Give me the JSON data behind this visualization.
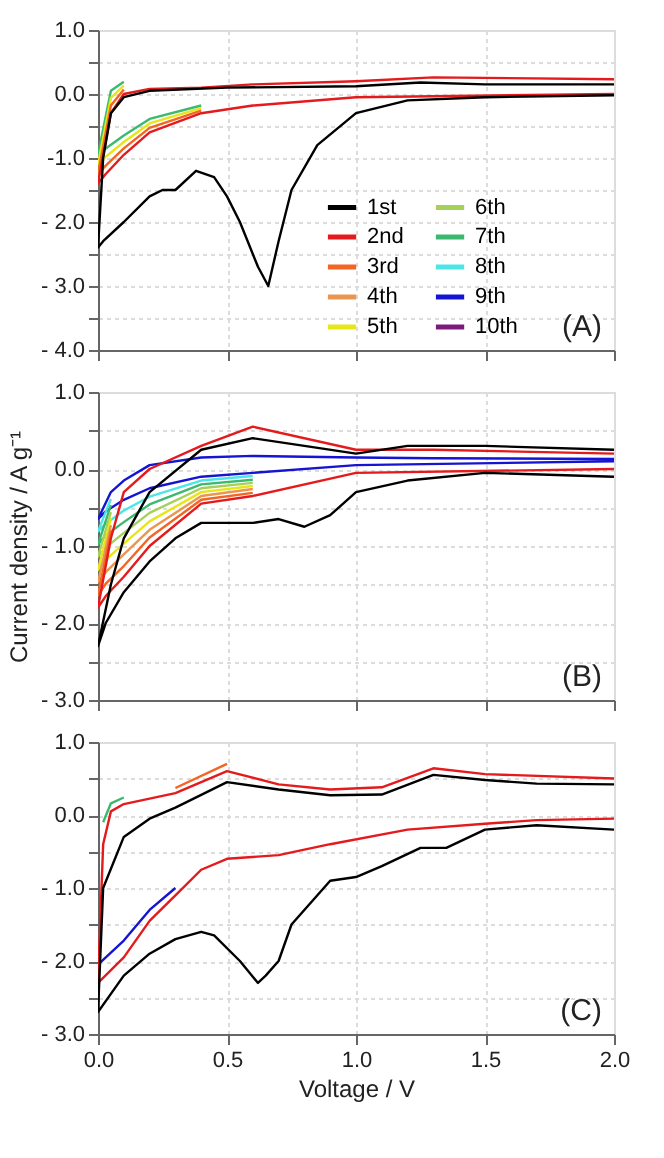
{
  "chart_data": [
    {
      "type": "line",
      "legend": "bottom right",
      "grid": true,
      "tick_labels": "y",
      "annotations": [
        "(A)"
      ],
      "xlim": [
        0,
        2
      ],
      "xticks": [
        {
          "value": 0,
          "label": null
        },
        {
          "value": 0.5,
          "label": null
        },
        {
          "value": 1,
          "label": null
        },
        {
          "value": 1.5,
          "label": null
        },
        {
          "value": 2,
          "label": null
        }
      ],
      "ylim": [
        -4,
        1
      ],
      "yticks": [
        {
          "value": 1,
          "label": "1.0"
        },
        {
          "value": 0.5,
          "label": null
        },
        {
          "value": 0,
          "label": "0.0"
        },
        {
          "value": -0.5,
          "label": null
        },
        {
          "value": -1,
          "label": "-1.0"
        },
        {
          "value": -1.5,
          "label": null
        },
        {
          "value": -2,
          "label": "- 2.0"
        },
        {
          "value": -2.5,
          "label": null
        },
        {
          "value": -3,
          "label": "- 3.0"
        },
        {
          "value": -3.5,
          "label": null
        },
        {
          "value": -4,
          "label": "- 4.0"
        }
      ],
      "x": [
        2.0,
        1.0,
        0.6,
        0.4,
        0.2,
        0.1,
        0.03,
        0.0,
        0.05,
        0.1,
        0.2,
        0.4,
        0.6,
        1.0,
        1.3,
        2.0
      ],
      "series": [
        {
          "name": "1st",
          "color": "#000000",
          "x": [
            2.0,
            1.5,
            1.2,
            1.0,
            0.85,
            0.75,
            0.7,
            0.66,
            0.62,
            0.55,
            0.5,
            0.45,
            0.38,
            0.3,
            0.25,
            0.2,
            0.1,
            0.02,
            0.0,
            0.02,
            0.05,
            0.1,
            0.2,
            0.5,
            1.0,
            1.25,
            1.5,
            2.0
          ],
          "values": [
            -0.02,
            -0.05,
            -0.1,
            -0.3,
            -0.8,
            -1.5,
            -2.3,
            -3.0,
            -2.7,
            -2.0,
            -1.6,
            -1.3,
            -1.2,
            -1.5,
            -1.5,
            -1.6,
            -2.0,
            -2.3,
            -2.4,
            -1.0,
            -0.3,
            -0.05,
            0.05,
            0.1,
            0.12,
            0.18,
            0.15,
            0.15
          ]
        },
        {
          "name": "2nd",
          "color": "#e41a1c",
          "values": [
            0.0,
            -0.05,
            -0.18,
            -0.3,
            -0.6,
            -0.95,
            -1.25,
            -1.4,
            -0.3,
            0.0,
            0.08,
            0.1,
            0.15,
            0.2,
            0.26,
            0.23
          ]
        },
        {
          "name": "3rd",
          "color": "#f26522",
          "values": [
            null,
            null,
            null,
            -0.26,
            -0.53,
            -0.85,
            -1.12,
            -1.25,
            -0.18,
            0.07,
            null,
            null,
            null,
            null,
            null,
            null
          ]
        },
        {
          "name": "4th",
          "color": "#eb9650",
          "values": [
            null,
            null,
            null,
            null,
            null,
            null,
            null,
            null,
            null,
            null,
            null,
            null,
            null,
            null,
            null,
            null
          ]
        },
        {
          "name": "5th",
          "color": "#e6e619",
          "values": [
            null,
            null,
            null,
            -0.22,
            -0.46,
            -0.75,
            -0.98,
            -1.1,
            -0.06,
            0.13,
            null,
            null,
            null,
            null,
            null,
            null
          ]
        },
        {
          "name": "6th",
          "color": "#a6d05a",
          "values": [
            null,
            null,
            null,
            null,
            null,
            null,
            null,
            null,
            null,
            null,
            null,
            null,
            null,
            null,
            null,
            null
          ]
        },
        {
          "name": "7th",
          "color": "#3cb96e",
          "values": [
            null,
            null,
            null,
            -0.18,
            -0.39,
            -0.65,
            -0.85,
            -0.95,
            0.05,
            0.19,
            null,
            null,
            null,
            null,
            null,
            null
          ]
        },
        {
          "name": "8th",
          "color": "#4de6e6",
          "values": [
            null,
            null,
            null,
            null,
            null,
            null,
            null,
            null,
            null,
            null,
            null,
            null,
            null,
            null,
            null,
            null
          ]
        },
        {
          "name": "9th",
          "color": "#1414d2",
          "values": [
            null,
            null,
            null,
            null,
            null,
            null,
            null,
            null,
            null,
            null,
            null,
            null,
            null,
            null,
            null,
            null
          ]
        },
        {
          "name": "10th",
          "color": "#7d1a7d",
          "values": [
            null,
            null,
            null,
            null,
            null,
            null,
            null,
            null,
            null,
            null,
            null,
            null,
            null,
            null,
            null,
            null
          ]
        }
      ]
    },
    {
      "type": "line",
      "grid": true,
      "tick_labels": "y",
      "ylabel": "Current density / A g⁻¹",
      "annotations": [
        "(B)"
      ],
      "xlim": [
        0,
        2
      ],
      "xticks": [
        {
          "value": 0,
          "label": null
        },
        {
          "value": 0.5,
          "label": null
        },
        {
          "value": 1,
          "label": null
        },
        {
          "value": 1.5,
          "label": null
        },
        {
          "value": 2,
          "label": null
        }
      ],
      "ylim": [
        -3,
        1
      ],
      "yticks": [
        {
          "value": 1,
          "label": "1.0"
        },
        {
          "value": 0.5,
          "label": null
        },
        {
          "value": 0,
          "label": "0.0"
        },
        {
          "value": -0.5,
          "label": null
        },
        {
          "value": -1,
          "label": "- 1.0"
        },
        {
          "value": -1.5,
          "label": null
        },
        {
          "value": -2,
          "label": "- 2.0"
        },
        {
          "value": -2.5,
          "label": null
        },
        {
          "value": -3,
          "label": "- 3.0"
        }
      ],
      "x": [
        2.0,
        1.0,
        0.6,
        0.4,
        0.2,
        0.1,
        0.03,
        0.0,
        0.05,
        0.1,
        0.2,
        0.4,
        0.6,
        1.0,
        1.3,
        2.0
      ],
      "series": [
        {
          "color": "#000000",
          "x": [
            2.0,
            1.5,
            1.2,
            1.0,
            0.9,
            0.8,
            0.7,
            0.6,
            0.4,
            0.3,
            0.2,
            0.1,
            0.03,
            0.0,
            0.05,
            0.1,
            0.2,
            0.4,
            0.6,
            0.8,
            1.0,
            1.2,
            1.5,
            2.0
          ],
          "values": [
            -0.1,
            -0.05,
            -0.15,
            -0.3,
            -0.6,
            -0.75,
            -0.65,
            -0.7,
            -0.7,
            -0.9,
            -1.2,
            -1.6,
            -2.0,
            -2.3,
            -1.5,
            -0.9,
            -0.3,
            0.25,
            0.4,
            0.3,
            0.2,
            0.3,
            0.3,
            0.25
          ]
        },
        {
          "color": "#e41a1c",
          "values": [
            0.0,
            -0.05,
            -0.35,
            -0.45,
            -1.0,
            -1.4,
            -1.65,
            -1.8,
            -0.9,
            -0.3,
            0.0,
            0.3,
            0.55,
            0.25,
            0.25,
            0.2
          ]
        },
        {
          "color": "#f26522",
          "values": [
            null,
            null,
            -0.31,
            -0.4,
            -0.89,
            -1.26,
            -1.49,
            -1.64,
            -0.81,
            null,
            null,
            null,
            null,
            null,
            null,
            null
          ]
        },
        {
          "color": "#eb9650",
          "values": [
            null,
            null,
            -0.26,
            -0.35,
            -0.79,
            -1.11,
            -1.34,
            -1.47,
            -0.73,
            null,
            null,
            null,
            null,
            null,
            null,
            null
          ]
        },
        {
          "color": "#e6e619",
          "values": [
            null,
            null,
            -0.22,
            -0.3,
            -0.68,
            -0.97,
            -1.18,
            -1.31,
            -0.64,
            null,
            null,
            null,
            null,
            null,
            null,
            null
          ]
        },
        {
          "color": "#a6d05a",
          "values": [
            null,
            null,
            -0.18,
            -0.25,
            -0.57,
            -0.83,
            -1.02,
            -1.14,
            -0.56,
            null,
            null,
            null,
            null,
            null,
            null,
            null
          ]
        },
        {
          "color": "#3cb96e",
          "values": [
            null,
            null,
            -0.14,
            -0.2,
            -0.46,
            -0.69,
            -0.86,
            -0.98,
            -0.47,
            null,
            null,
            null,
            null,
            null,
            null,
            null
          ]
        },
        {
          "color": "#4de6e6",
          "values": [
            null,
            null,
            -0.09,
            -0.15,
            -0.36,
            -0.54,
            -0.71,
            -0.81,
            -0.39,
            null,
            null,
            null,
            null,
            null,
            null,
            null
          ]
        },
        {
          "color": "#1414d2",
          "values": [
            0.1,
            0.05,
            -0.05,
            -0.1,
            -0.25,
            -0.4,
            -0.55,
            -0.65,
            -0.3,
            -0.15,
            0.05,
            0.15,
            0.17,
            0.15,
            0.14,
            0.13
          ]
        },
        {
          "color": "#7d1a7d",
          "values": [
            null,
            null,
            null,
            null,
            null,
            null,
            null,
            null,
            null,
            null,
            null,
            null,
            null,
            null,
            null,
            null
          ]
        }
      ]
    },
    {
      "type": "line",
      "grid": true,
      "xlabel": "Voltage / V",
      "annotations": [
        "(C)"
      ],
      "xlim": [
        0,
        2
      ],
      "xticks": [
        {
          "value": 0,
          "label": "0.0"
        },
        {
          "value": 0.5,
          "label": "0.5"
        },
        {
          "value": 1,
          "label": "1.0"
        },
        {
          "value": 1.5,
          "label": "1.5"
        },
        {
          "value": 2,
          "label": "2.0"
        }
      ],
      "ylim": [
        -3,
        1
      ],
      "yticks": [
        {
          "value": 1,
          "label": "1.0"
        },
        {
          "value": 0.5,
          "label": null
        },
        {
          "value": 0,
          "label": "0.0"
        },
        {
          "value": -0.5,
          "label": null
        },
        {
          "value": -1,
          "label": "- 1.0"
        },
        {
          "value": -1.5,
          "label": null
        },
        {
          "value": -2,
          "label": "- 2.0"
        },
        {
          "value": -2.5,
          "label": null
        },
        {
          "value": -3,
          "label": "- 3.0"
        }
      ],
      "x": [
        2.0,
        1.7,
        1.5,
        1.2,
        0.9,
        0.7,
        0.5,
        0.4,
        0.3,
        0.2,
        0.1,
        0.0,
        0.02,
        0.05,
        0.1,
        0.3,
        0.5,
        0.7,
        0.9,
        1.1,
        1.3,
        1.5,
        2.0
      ],
      "series": [
        {
          "color": "#000000",
          "x": [
            2.0,
            1.7,
            1.5,
            1.35,
            1.25,
            1.1,
            1.0,
            0.9,
            0.75,
            0.7,
            0.65,
            0.62,
            0.55,
            0.45,
            0.4,
            0.3,
            0.2,
            0.1,
            0.0,
            0.02,
            0.1,
            0.2,
            0.3,
            0.5,
            0.7,
            0.9,
            1.1,
            1.3,
            1.5,
            1.7,
            2.0
          ],
          "values": [
            -0.2,
            -0.14,
            -0.2,
            -0.45,
            -0.45,
            -0.7,
            -0.85,
            -0.9,
            -1.5,
            -2.0,
            -2.2,
            -2.3,
            -2.0,
            -1.65,
            -1.6,
            -1.7,
            -1.9,
            -2.2,
            -2.7,
            -1.0,
            -0.3,
            -0.05,
            0.1,
            0.45,
            0.35,
            0.27,
            0.28,
            0.55,
            0.48,
            0.43,
            0.42
          ]
        },
        {
          "color": "#e41a1c",
          "values": [
            -0.05,
            -0.07,
            -0.12,
            -0.2,
            -0.4,
            -0.55,
            -0.6,
            -0.75,
            -1.1,
            -1.45,
            -1.95,
            -2.3,
            -0.4,
            0.05,
            0.15,
            0.3,
            0.6,
            0.42,
            0.35,
            0.38,
            0.64,
            0.56,
            0.5
          ]
        },
        {
          "color": "#f26522",
          "values": [
            null,
            null,
            null,
            null,
            null,
            null,
            null,
            null,
            null,
            null,
            null,
            null,
            null,
            null,
            null,
            0.37,
            0.7,
            null,
            null,
            null,
            null,
            null,
            null
          ]
        },
        {
          "color": "#eb9650",
          "values": [
            null,
            null,
            null,
            null,
            null,
            null,
            null,
            null,
            null,
            null,
            null,
            null,
            null,
            null,
            null,
            null,
            null,
            null,
            null,
            null,
            null,
            null,
            null
          ]
        },
        {
          "color": "#e6e619",
          "values": [
            null,
            null,
            null,
            null,
            null,
            null,
            null,
            null,
            null,
            null,
            null,
            null,
            null,
            null,
            null,
            null,
            null,
            null,
            null,
            null,
            null,
            null,
            null
          ]
        },
        {
          "color": "#a6d05a",
          "values": [
            null,
            null,
            null,
            null,
            null,
            null,
            null,
            null,
            null,
            null,
            null,
            null,
            null,
            null,
            null,
            null,
            null,
            null,
            null,
            null,
            null,
            null,
            null
          ]
        },
        {
          "color": "#3cb96e",
          "values": [
            null,
            null,
            null,
            null,
            null,
            null,
            null,
            null,
            null,
            null,
            null,
            null,
            -0.1,
            0.16,
            0.24,
            null,
            null,
            null,
            null,
            null,
            null,
            null,
            null
          ]
        },
        {
          "color": "#4de6e6",
          "values": [
            null,
            null,
            null,
            null,
            null,
            null,
            null,
            null,
            null,
            null,
            null,
            null,
            null,
            null,
            null,
            null,
            null,
            null,
            null,
            null,
            null,
            null,
            null
          ]
        },
        {
          "color": "#1414d2",
          "values": [
            null,
            null,
            null,
            null,
            null,
            null,
            null,
            null,
            -1.0,
            -1.3,
            -1.72,
            -2.05,
            null,
            null,
            null,
            null,
            null,
            null,
            null,
            null,
            null,
            null,
            null
          ]
        },
        {
          "color": "#7d1a7d",
          "values": [
            null,
            null,
            null,
            null,
            null,
            null,
            null,
            null,
            null,
            null,
            null,
            null,
            null,
            null,
            null,
            null,
            null,
            null,
            null,
            null,
            null,
            null,
            null
          ]
        }
      ]
    }
  ]
}
